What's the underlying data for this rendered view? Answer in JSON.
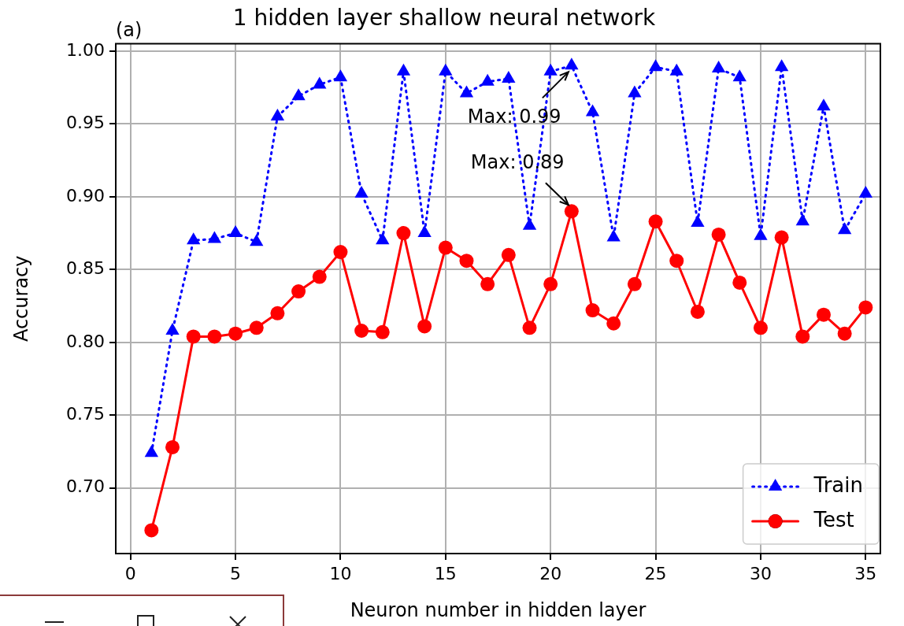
{
  "chart_data": {
    "type": "line",
    "title": "1 hidden layer shallow neural network",
    "xlabel": "Neuron number in hidden layer",
    "ylabel": "Accuracy",
    "x": [
      1,
      2,
      3,
      4,
      5,
      6,
      7,
      8,
      9,
      10,
      11,
      12,
      13,
      14,
      15,
      16,
      17,
      18,
      19,
      20,
      21,
      22,
      23,
      24,
      25,
      26,
      27,
      28,
      29,
      30,
      31,
      32,
      33,
      34,
      35
    ],
    "series": [
      {
        "name": "Train",
        "color": "#0000ff",
        "marker": "triangle",
        "line_style": "dotted",
        "values": [
          0.724,
          0.808,
          0.87,
          0.871,
          0.875,
          0.869,
          0.955,
          0.969,
          0.977,
          0.982,
          0.902,
          0.87,
          0.986,
          0.875,
          0.986,
          0.971,
          0.979,
          0.981,
          0.88,
          0.986,
          0.99,
          0.958,
          0.872,
          0.971,
          0.989,
          0.986,
          0.882,
          0.988,
          0.982,
          0.873,
          0.989,
          0.883,
          0.962,
          0.877,
          0.902
        ]
      },
      {
        "name": "Test",
        "color": "#ff0000",
        "marker": "circle",
        "line_style": "solid",
        "values": [
          0.671,
          0.728,
          0.804,
          0.804,
          0.806,
          0.81,
          0.82,
          0.835,
          0.845,
          0.862,
          0.808,
          0.807,
          0.875,
          0.811,
          0.865,
          0.856,
          0.84,
          0.86,
          0.81,
          0.84,
          0.89,
          0.822,
          0.813,
          0.84,
          0.883,
          0.856,
          0.821,
          0.874,
          0.841,
          0.81,
          0.872,
          0.804,
          0.819,
          0.806,
          0.824
        ]
      }
    ],
    "xlim": [
      -0.7,
      35.7
    ],
    "xticks": [
      0,
      5,
      10,
      15,
      20,
      25,
      30,
      35
    ],
    "ylim": [
      0.655,
      1.005
    ],
    "yticks": [
      {
        "value": 0.7,
        "label": "0.70"
      },
      {
        "value": 0.75,
        "label": "0.75"
      },
      {
        "value": 0.8,
        "label": "0.80"
      },
      {
        "value": 0.85,
        "label": "0.85"
      },
      {
        "value": 0.9,
        "label": "0.90"
      },
      {
        "value": 0.95,
        "label": "0.95"
      },
      {
        "value": 1.0,
        "label": "1.00"
      }
    ],
    "grid": true,
    "legend": "bottom right",
    "annotations": [
      "(a)",
      {
        "text": "Max: 0.99",
        "x": 21,
        "y": 0.99
      },
      {
        "text": "Max: 0.89",
        "x": 21,
        "y": 0.89
      }
    ]
  }
}
